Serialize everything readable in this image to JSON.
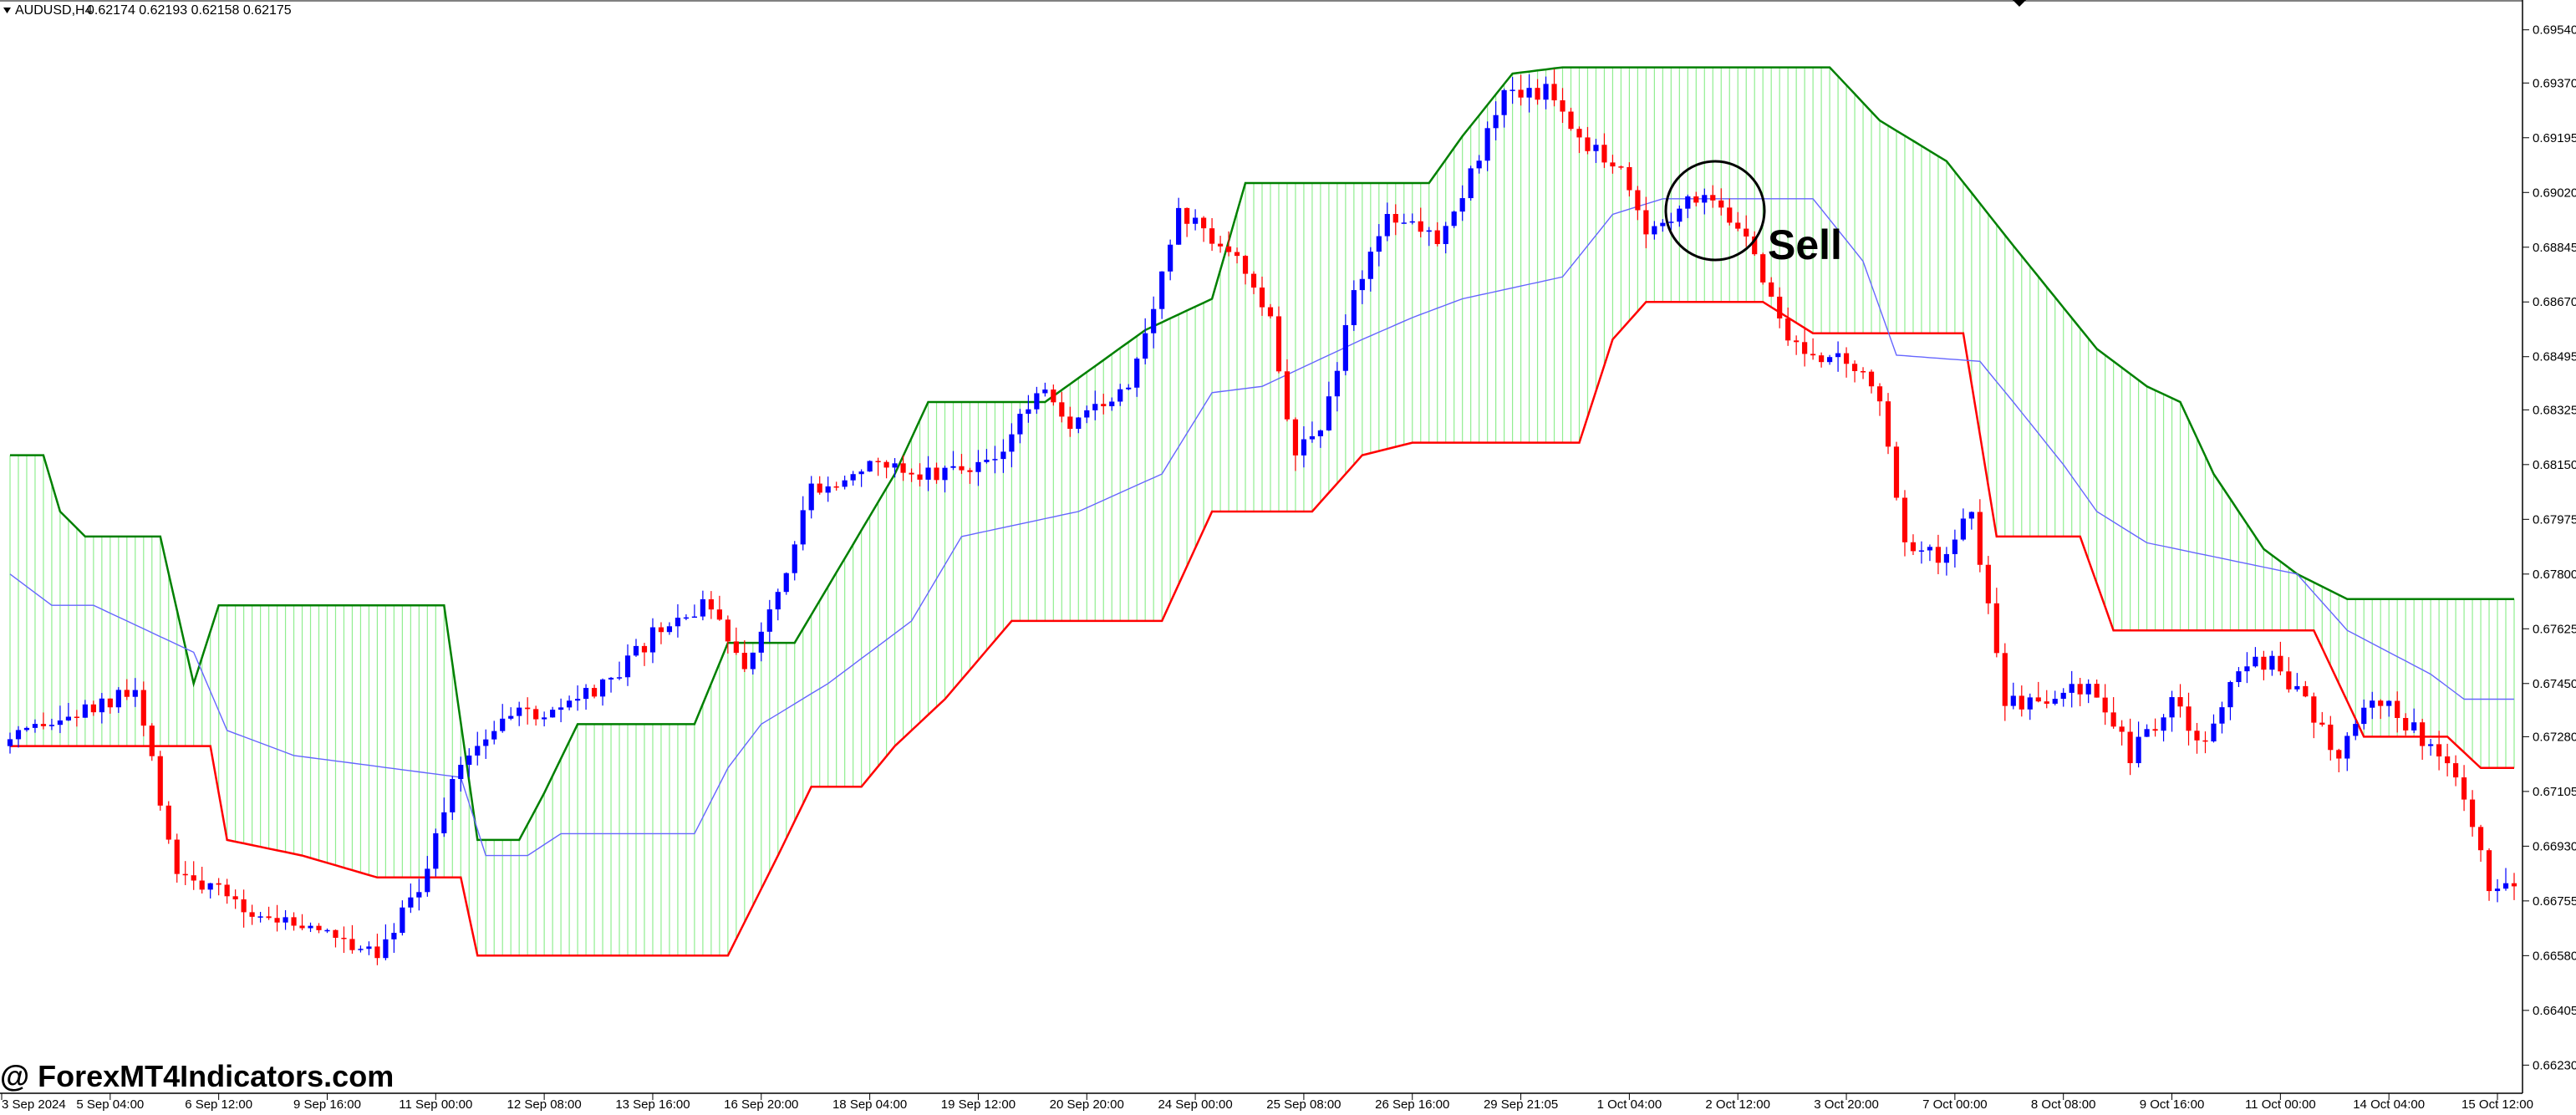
{
  "header": {
    "symbol": "AUDUSD,H4",
    "ohlc": "0.62174 0.62193 0.62158 0.62175"
  },
  "watermark": "@ ForexMT4Indicators.com",
  "annotation": {
    "label": "Sell"
  },
  "colors": {
    "bull": "#0000ff",
    "bear": "#ff0000",
    "span_a": "#008000",
    "span_a_soft": "#90ee90",
    "span_b": "#ff0000",
    "span_b_soft": "#ff9999",
    "kijun": "#6666ff",
    "axis": "#000000"
  },
  "chart_data": {
    "type": "candlestick",
    "title": "",
    "xlabel": "",
    "ylabel": "",
    "ylim": [
      0.6614,
      0.6963
    ],
    "y_ticks": [
      "0.69540",
      "0.69370",
      "0.69195",
      "0.69020",
      "0.68845",
      "0.68670",
      "0.68495",
      "0.68325",
      "0.68150",
      "0.67975",
      "0.67800",
      "0.67625",
      "0.67450",
      "0.67280",
      "0.67105",
      "0.66930",
      "0.66755",
      "0.66580",
      "0.66405",
      "0.66230"
    ],
    "x_ticks": [
      "3 Sep 2024",
      "5 Sep 04:00",
      "6 Sep 12:00",
      "9 Sep 16:00",
      "11 Sep 00:00",
      "12 Sep 08:00",
      "13 Sep 16:00",
      "16 Sep 20:00",
      "18 Sep 04:00",
      "19 Sep 12:00",
      "20 Sep 20:00",
      "24 Sep 00:00",
      "25 Sep 08:00",
      "26 Sep 16:00",
      "29 Sep 21:05",
      "1 Oct 04:00",
      "2 Oct 12:00",
      "3 Oct 20:00",
      "7 Oct 00:00",
      "8 Oct 08:00",
      "9 Oct 16:00",
      "11 Oct 00:00",
      "14 Oct 04:00",
      "15 Oct 12:00"
    ],
    "trend_anchors": [
      [
        0,
        0.6725
      ],
      [
        9,
        0.6735
      ],
      [
        16,
        0.6742
      ],
      [
        21,
        0.6685
      ],
      [
        30,
        0.6672
      ],
      [
        39,
        0.6665
      ],
      [
        45,
        0.666
      ],
      [
        50,
        0.668
      ],
      [
        55,
        0.672
      ],
      [
        60,
        0.6735
      ],
      [
        66,
        0.6735
      ],
      [
        73,
        0.6745
      ],
      [
        78,
        0.676
      ],
      [
        84,
        0.677
      ],
      [
        89,
        0.6752
      ],
      [
        93,
        0.6775
      ],
      [
        97,
        0.6808
      ],
      [
        106,
        0.6815
      ],
      [
        112,
        0.6812
      ],
      [
        120,
        0.6818
      ],
      [
        124,
        0.684
      ],
      [
        128,
        0.6825
      ],
      [
        135,
        0.6842
      ],
      [
        138,
        0.6867
      ],
      [
        141,
        0.6895
      ],
      [
        147,
        0.6885
      ],
      [
        152,
        0.686
      ],
      [
        155,
        0.6818
      ],
      [
        158,
        0.6825
      ],
      [
        162,
        0.687
      ],
      [
        166,
        0.6895
      ],
      [
        172,
        0.6888
      ],
      [
        176,
        0.6908
      ],
      [
        180,
        0.6932
      ],
      [
        185,
        0.6935
      ],
      [
        190,
        0.6918
      ],
      [
        194,
        0.691
      ],
      [
        197,
        0.6888
      ],
      [
        201,
        0.6898
      ],
      [
        205,
        0.69
      ],
      [
        209,
        0.6888
      ],
      [
        213,
        0.686
      ],
      [
        217,
        0.6848
      ],
      [
        221,
        0.685
      ],
      [
        225,
        0.6835
      ],
      [
        228,
        0.6792
      ],
      [
        232,
        0.6785
      ],
      [
        236,
        0.68
      ],
      [
        240,
        0.674
      ],
      [
        244,
        0.6738
      ],
      [
        250,
        0.6745
      ],
      [
        255,
        0.6722
      ],
      [
        260,
        0.6738
      ],
      [
        264,
        0.6725
      ],
      [
        268,
        0.675
      ],
      [
        272,
        0.6752
      ],
      [
        276,
        0.6738
      ],
      [
        280,
        0.6722
      ],
      [
        284,
        0.6742
      ],
      [
        289,
        0.673
      ],
      [
        294,
        0.6715
      ],
      [
        298,
        0.668
      ],
      [
        301,
        0.6682
      ]
    ],
    "ichimoku_steps": {
      "span_a": [
        [
          0,
          0.6818
        ],
        [
          4,
          0.6818
        ],
        [
          6,
          0.68
        ],
        [
          9,
          0.6792
        ],
        [
          18,
          0.6792
        ],
        [
          22,
          0.6745
        ],
        [
          25,
          0.677
        ],
        [
          52,
          0.677
        ],
        [
          56,
          0.6695
        ],
        [
          61,
          0.6695
        ],
        [
          64,
          0.671
        ],
        [
          68,
          0.6732
        ],
        [
          82,
          0.6732
        ],
        [
          86,
          0.6758
        ],
        [
          94,
          0.6758
        ],
        [
          106,
          0.6812
        ],
        [
          110,
          0.6835
        ],
        [
          124,
          0.6835
        ],
        [
          136,
          0.6858
        ],
        [
          144,
          0.6868
        ],
        [
          148,
          0.6905
        ],
        [
          170,
          0.6905
        ],
        [
          174,
          0.692
        ],
        [
          180,
          0.694
        ],
        [
          186,
          0.6942
        ],
        [
          218,
          0.6942
        ],
        [
          224,
          0.6925
        ],
        [
          232,
          0.6912
        ],
        [
          240,
          0.6885
        ],
        [
          250,
          0.6852
        ],
        [
          256,
          0.684
        ],
        [
          260,
          0.6835
        ],
        [
          264,
          0.6812
        ],
        [
          270,
          0.6788
        ],
        [
          274,
          0.678
        ],
        [
          280,
          0.6772
        ],
        [
          300,
          0.6772
        ]
      ],
      "span_b": [
        [
          0,
          0.6725
        ],
        [
          24,
          0.6725
        ],
        [
          26,
          0.6695
        ],
        [
          35,
          0.669
        ],
        [
          44,
          0.6683
        ],
        [
          54,
          0.6683
        ],
        [
          56,
          0.6658
        ],
        [
          86,
          0.6658
        ],
        [
          92,
          0.669
        ],
        [
          96,
          0.6712
        ],
        [
          102,
          0.6712
        ],
        [
          106,
          0.6725
        ],
        [
          112,
          0.674
        ],
        [
          120,
          0.6765
        ],
        [
          138,
          0.6765
        ],
        [
          144,
          0.68
        ],
        [
          156,
          0.68
        ],
        [
          162,
          0.6818
        ],
        [
          168,
          0.6822
        ],
        [
          188,
          0.6822
        ],
        [
          192,
          0.6855
        ],
        [
          196,
          0.6867
        ],
        [
          210,
          0.6867
        ],
        [
          216,
          0.6857
        ],
        [
          234,
          0.6857
        ],
        [
          238,
          0.6792
        ],
        [
          248,
          0.6792
        ],
        [
          252,
          0.6762
        ],
        [
          276,
          0.6762
        ],
        [
          282,
          0.6728
        ],
        [
          292,
          0.6728
        ],
        [
          296,
          0.6718
        ],
        [
          300,
          0.6718
        ]
      ],
      "kijun": [
        [
          0,
          0.678
        ],
        [
          5,
          0.677
        ],
        [
          10,
          0.677
        ],
        [
          22,
          0.6755
        ],
        [
          26,
          0.673
        ],
        [
          34,
          0.6722
        ],
        [
          54,
          0.6715
        ],
        [
          57,
          0.669
        ],
        [
          62,
          0.669
        ],
        [
          66,
          0.6697
        ],
        [
          82,
          0.6697
        ],
        [
          86,
          0.6718
        ],
        [
          90,
          0.6732
        ],
        [
          98,
          0.6745
        ],
        [
          108,
          0.6765
        ],
        [
          114,
          0.6792
        ],
        [
          128,
          0.68
        ],
        [
          138,
          0.6812
        ],
        [
          144,
          0.6838
        ],
        [
          150,
          0.684
        ],
        [
          162,
          0.6855
        ],
        [
          168,
          0.6862
        ],
        [
          174,
          0.6868
        ],
        [
          186,
          0.6875
        ],
        [
          192,
          0.6895
        ],
        [
          198,
          0.69
        ],
        [
          216,
          0.69
        ],
        [
          222,
          0.688
        ],
        [
          226,
          0.685
        ],
        [
          236,
          0.6848
        ],
        [
          240,
          0.6835
        ],
        [
          246,
          0.6815
        ],
        [
          250,
          0.68
        ],
        [
          256,
          0.679
        ],
        [
          274,
          0.678
        ],
        [
          280,
          0.6762
        ],
        [
          290,
          0.6748
        ],
        [
          294,
          0.674
        ],
        [
          300,
          0.674
        ]
      ]
    }
  }
}
